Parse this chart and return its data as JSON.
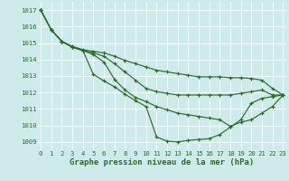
{
  "title": "Graphe pression niveau de la mer (hPa)",
  "hours": [
    0,
    1,
    2,
    3,
    4,
    5,
    6,
    7,
    8,
    9,
    10,
    11,
    12,
    13,
    14,
    15,
    16,
    17,
    18,
    19,
    20,
    21,
    22,
    23
  ],
  "ylim": [
    1008.5,
    1017.5
  ],
  "xlim": [
    -0.3,
    23.3
  ],
  "yticks": [
    1009,
    1010,
    1011,
    1012,
    1013,
    1014,
    1015,
    1016,
    1017
  ],
  "bg_color": "#ceeaea",
  "line_color": "#2d6b2d",
  "grid_color": "#b0d8d8",
  "lines": [
    [
      1017.0,
      1015.8,
      1015.1,
      1014.75,
      1014.55,
      1013.1,
      1012.7,
      1012.35,
      1011.9,
      1011.5,
      1011.15,
      1009.3,
      1009.05,
      1009.0,
      1009.1,
      1009.15,
      1009.2,
      1009.45,
      1009.9,
      1010.35,
      1011.35,
      1011.65,
      1011.75,
      1011.85
    ],
    [
      1017.0,
      1015.8,
      1015.1,
      1014.75,
      1014.55,
      1014.3,
      1013.85,
      1012.8,
      1012.15,
      1011.7,
      1011.45,
      1011.15,
      1010.95,
      1010.75,
      1010.65,
      1010.55,
      1010.45,
      1010.35,
      1009.95,
      1010.2,
      1010.35,
      1010.75,
      1011.15,
      1011.85
    ],
    [
      1017.0,
      1015.8,
      1015.1,
      1014.75,
      1014.55,
      1014.4,
      1014.2,
      1013.75,
      1013.25,
      1012.75,
      1012.25,
      1012.05,
      1011.95,
      1011.85,
      1011.85,
      1011.85,
      1011.85,
      1011.85,
      1011.85,
      1011.95,
      1012.05,
      1012.15,
      1011.85,
      1011.85
    ],
    [
      1017.0,
      1015.8,
      1015.1,
      1014.8,
      1014.6,
      1014.5,
      1014.4,
      1014.2,
      1013.95,
      1013.75,
      1013.55,
      1013.35,
      1013.25,
      1013.15,
      1013.05,
      1012.95,
      1012.95,
      1012.95,
      1012.9,
      1012.9,
      1012.85,
      1012.75,
      1012.25,
      1011.85
    ]
  ],
  "title_fontsize": 6.5,
  "tick_fontsize": 5.2
}
